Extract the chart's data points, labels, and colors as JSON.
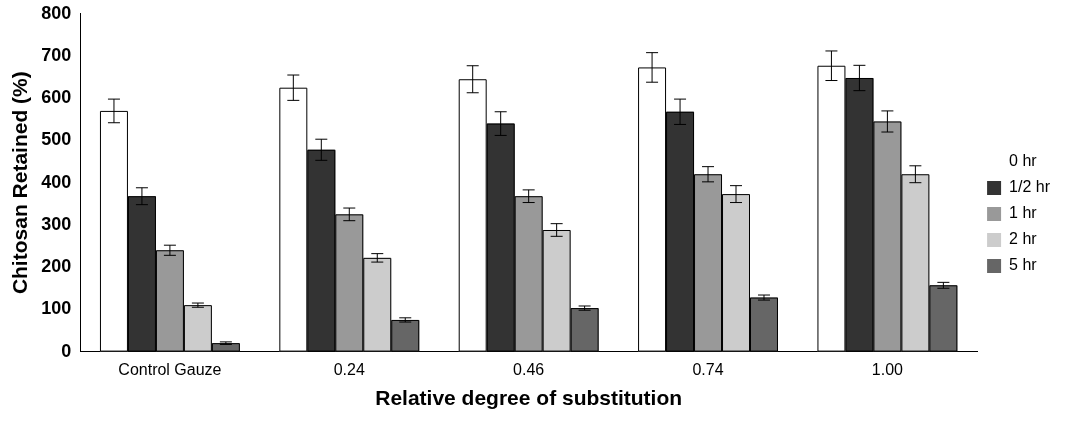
{
  "chart_data": {
    "type": "bar",
    "xlabel": "Relative degree of substitution",
    "ylabel": "Chitosan Retained (%)",
    "categories": [
      "Control Gauze",
      "0.24",
      "0.46",
      "0.74",
      "1.00"
    ],
    "series": [
      {
        "name": "0 hr",
        "color": "#ffffff",
        "values": [
          570,
          625,
          645,
          673,
          677
        ],
        "errors": [
          28,
          30,
          32,
          35,
          35
        ]
      },
      {
        "name": "1/2 hr",
        "color": "#333333",
        "values": [
          368,
          478,
          540,
          568,
          648
        ],
        "errors": [
          20,
          25,
          28,
          30,
          30
        ]
      },
      {
        "name": "1 hr",
        "color": "#999999",
        "values": [
          240,
          325,
          368,
          420,
          545
        ],
        "errors": [
          12,
          15,
          15,
          18,
          25
        ]
      },
      {
        "name": "2 hr",
        "color": "#cccccc",
        "values": [
          110,
          222,
          288,
          373,
          420
        ],
        "errors": [
          5,
          10,
          15,
          20,
          20
        ]
      },
      {
        "name": "5 hr",
        "color": "#666666",
        "values": [
          20,
          75,
          103,
          128,
          157
        ],
        "errors": [
          3,
          5,
          5,
          6,
          7
        ]
      }
    ],
    "ylim": [
      0,
      800
    ],
    "yticks": [
      0,
      100,
      200,
      300,
      400,
      500,
      600,
      700,
      800
    ],
    "grid": false,
    "legend": "right"
  }
}
